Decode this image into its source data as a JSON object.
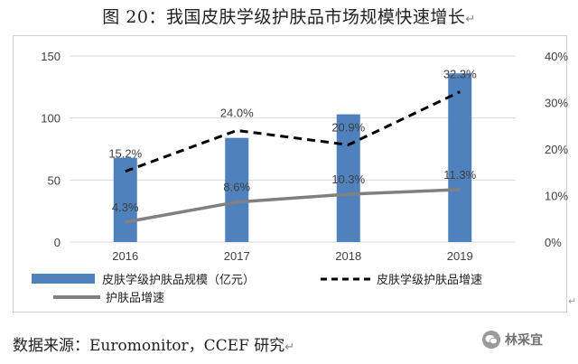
{
  "title": "图 20：我国皮肤学级护肤品市场规模快速增长",
  "paragraph_mark": "↵",
  "side_mark": "↵",
  "source": "数据来源：Euromonitor，CCEF 研究",
  "watermark": "林采宜",
  "colors": {
    "bar": "#4f81bd",
    "derm_growth_line": "#000000",
    "skincare_growth_line": "#808080",
    "gridline": "#d9d9d9",
    "axis_text": "#404040"
  },
  "chart_data": {
    "type": "bar",
    "categories": [
      "2016",
      "2017",
      "2018",
      "2019"
    ],
    "ylim_left": [
      0,
      150
    ],
    "yticks_left": [
      "0",
      "50",
      "100",
      "150"
    ],
    "ylim_right": [
      0,
      40
    ],
    "yticks_right": [
      "0%",
      "10%",
      "20%",
      "30%",
      "40%"
    ],
    "grid": true,
    "legend_position": "bottom",
    "series": [
      {
        "name": "皮肤学级护肤品规模（亿元）",
        "kind": "bar",
        "axis": "left",
        "values": [
          68,
          84,
          103,
          136
        ]
      },
      {
        "name": "皮肤学级护肤品增速",
        "kind": "line",
        "style": "dashed",
        "axis": "right",
        "values": [
          15.2,
          24.0,
          20.9,
          32.3
        ],
        "labels": [
          "15.2%",
          "24.0%",
          "20.9%",
          "32.3%"
        ]
      },
      {
        "name": "护肤品增速",
        "kind": "line",
        "style": "solid",
        "axis": "right",
        "values": [
          4.3,
          8.6,
          10.3,
          11.3
        ],
        "labels": [
          "4.3%",
          "8.6%",
          "10.3%",
          "11.3%"
        ]
      }
    ]
  }
}
